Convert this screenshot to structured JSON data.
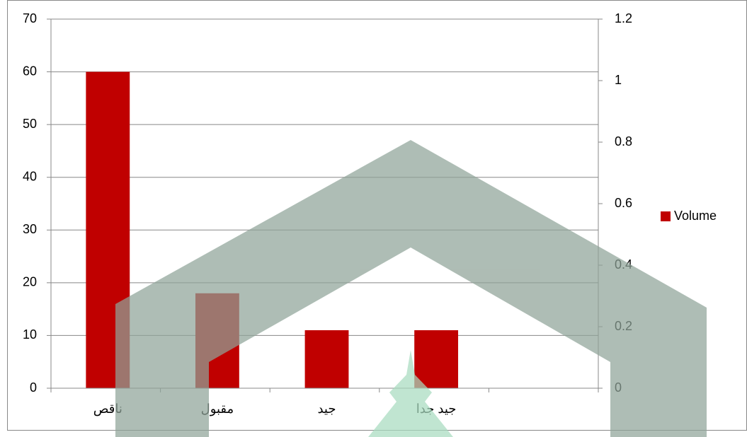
{
  "chart_data": {
    "type": "bar",
    "categories": [
      "ناقص",
      "مقبول",
      "جيد",
      "جيد جدا",
      null
    ],
    "series": [
      {
        "name": "Volume",
        "color": "#c00000",
        "values": [
          60,
          18,
          11,
          11,
          null
        ]
      }
    ],
    "ylim": [
      0,
      70
    ],
    "yticks": [
      0,
      10,
      20,
      30,
      40,
      50,
      60,
      70
    ],
    "y2lim": [
      0,
      1.2
    ],
    "y2ticks": [
      0,
      0.2,
      0.4,
      0.6,
      0.8,
      1,
      1.2
    ],
    "grid": true,
    "legend": "right"
  }
}
